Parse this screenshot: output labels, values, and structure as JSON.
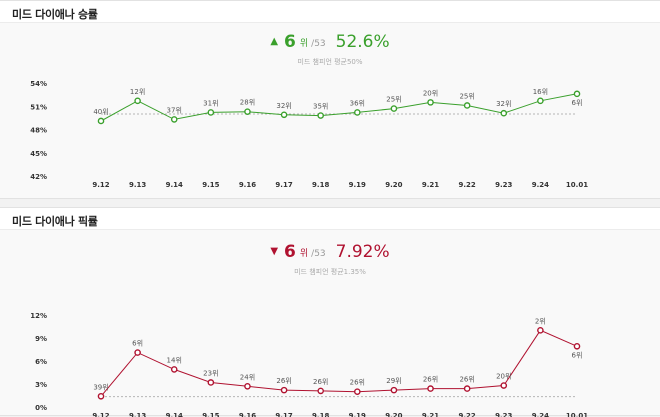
{
  "panels": [
    {
      "title": "미드 다이애나 승률",
      "rank": "6",
      "rank_unit": "위",
      "rank_total": "/53",
      "direction_icon": "triangle-up-icon",
      "direction_glyph": "▲",
      "rate": "52.6%",
      "average_text": "미드 챔피언 평균50%",
      "color": "#3aa02c"
    },
    {
      "title": "미드 다이애나 픽률",
      "rank": "6",
      "rank_unit": "위",
      "rank_total": "/53",
      "direction_icon": "triangle-down-icon",
      "direction_glyph": "▼",
      "rate": "7.92%",
      "average_text": "미드 챔피언 평균1.35%",
      "color": "#b01230"
    }
  ],
  "chart_data": [
    {
      "type": "line",
      "x": [
        "9.12",
        "9.13",
        "9.14",
        "9.15",
        "9.16",
        "9.17",
        "9.18",
        "9.19",
        "9.20",
        "9.21",
        "9.22",
        "9.23",
        "9.24",
        "10.01"
      ],
      "yticks": [
        "54%",
        "51%",
        "48%",
        "45%",
        "42%"
      ],
      "ylim": [
        42,
        54
      ],
      "series": [
        {
          "values": [
            49.1,
            51.7,
            49.3,
            50.2,
            50.3,
            49.9,
            49.8,
            50.2,
            50.7,
            51.5,
            51.1,
            50.1,
            51.7,
            52.6
          ],
          "labels": [
            "40위",
            "12위",
            "37위",
            "31위",
            "28위",
            "32위",
            "35위",
            "36위",
            "25위",
            "20위",
            "25위",
            "32위",
            "16위",
            "6위"
          ],
          "color": "#3aa02c"
        }
      ],
      "reference_line": 50
    },
    {
      "type": "line",
      "x": [
        "9.12",
        "9.13",
        "9.14",
        "9.15",
        "9.16",
        "9.17",
        "9.18",
        "9.19",
        "9.20",
        "9.21",
        "9.22",
        "9.23",
        "9.24",
        "10.01"
      ],
      "yticks": [
        "12%",
        "9%",
        "6%",
        "3%",
        "0%"
      ],
      "ylim": [
        0,
        12
      ],
      "series": [
        {
          "values": [
            1.4,
            7.1,
            4.9,
            3.2,
            2.7,
            2.2,
            2.1,
            2.0,
            2.2,
            2.4,
            2.4,
            2.8,
            10.0,
            7.92
          ],
          "labels": [
            "39위",
            "6위",
            "14위",
            "23위",
            "24위",
            "26위",
            "26위",
            "26위",
            "29위",
            "26위",
            "26위",
            "20위",
            "2위",
            "6위"
          ],
          "color": "#b01230"
        }
      ],
      "reference_line": 1.35
    }
  ]
}
